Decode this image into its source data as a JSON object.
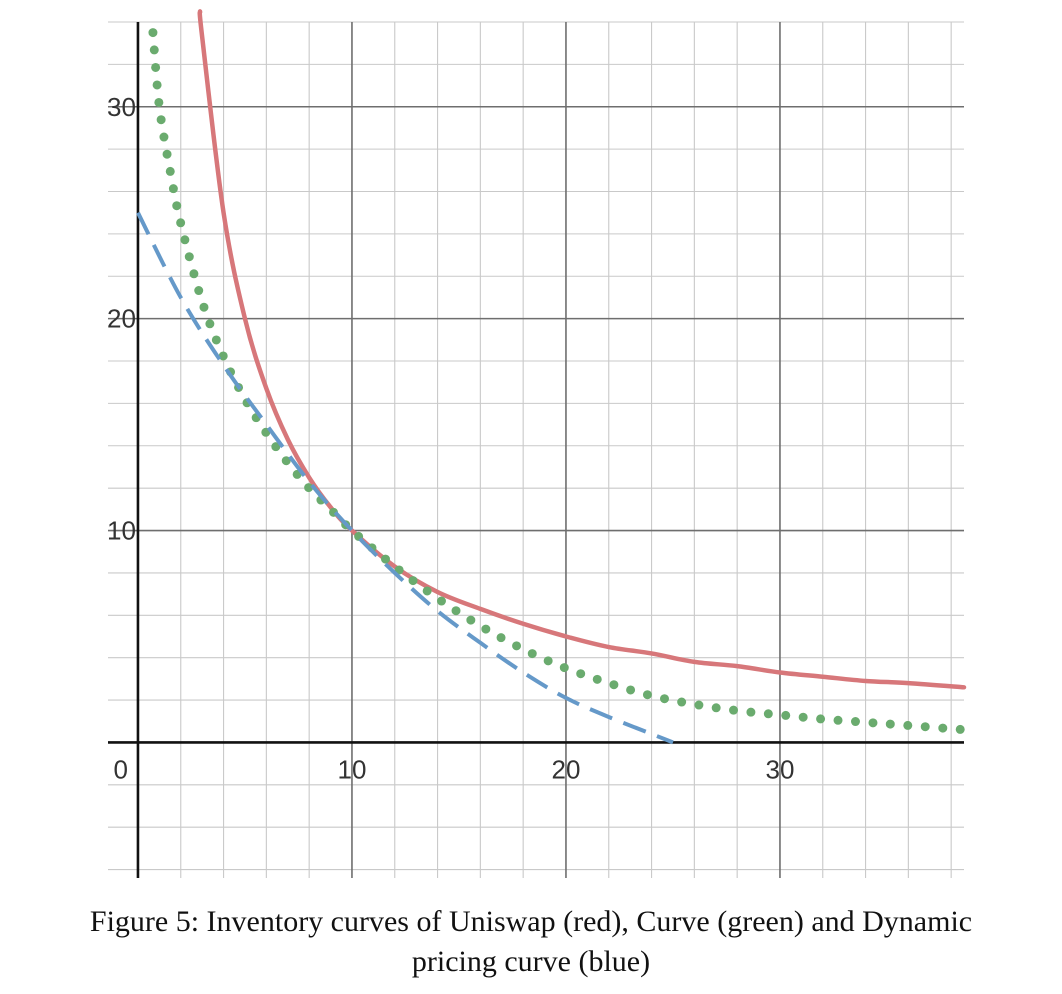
{
  "chart_data": {
    "type": "line",
    "title": "",
    "xlabel": "",
    "ylabel": "",
    "xlim": [
      -1.4,
      38.6
    ],
    "ylim": [
      -6.4,
      34
    ],
    "x_major_ticks": [
      0,
      10,
      20,
      30
    ],
    "y_major_ticks": [
      10,
      20,
      30
    ],
    "x_tick_labels": [
      "0",
      "10",
      "20",
      "30"
    ],
    "y_tick_labels": [
      "10",
      "20",
      "30"
    ],
    "minor_step": 2,
    "grid": true,
    "series": [
      {
        "color": "#d7777a",
        "style": "solid",
        "x": [
          2.9,
          3,
          4,
          5,
          6,
          7,
          8,
          9,
          10,
          12,
          14,
          16,
          18,
          20,
          22,
          24,
          26,
          28,
          30,
          32,
          34,
          36,
          38.6
        ],
        "values": [
          34.5,
          33.3,
          25,
          20,
          16.7,
          14.3,
          12.5,
          11.1,
          10,
          8.3,
          7.1,
          6.3,
          5.6,
          5,
          4.5,
          4.2,
          3.8,
          3.6,
          3.3,
          3.1,
          2.9,
          2.8,
          2.6
        ]
      },
      {
        "color": "#6aab6e",
        "style": "dotted",
        "x": [
          0.7,
          1,
          1.5,
          2,
          3,
          4,
          5,
          6,
          7,
          8,
          9,
          10,
          12,
          14,
          16,
          18,
          20,
          22,
          24,
          26,
          28,
          30,
          32,
          34,
          36,
          38.6
        ],
        "values": [
          33.5,
          30,
          27,
          24.5,
          20.8,
          18.2,
          16.2,
          14.6,
          13.2,
          12,
          11,
          10,
          8.3,
          6.8,
          5.5,
          4.4,
          3.5,
          2.8,
          2.2,
          1.8,
          1.5,
          1.3,
          1.1,
          0.95,
          0.8,
          0.6
        ]
      },
      {
        "color": "#6599c9",
        "style": "dashed",
        "x": [
          0,
          2,
          4,
          6,
          8,
          10,
          12,
          14,
          16,
          18,
          20,
          22,
          24,
          25
        ],
        "values": [
          25,
          21,
          17.8,
          15,
          12.3,
          10,
          8,
          6.2,
          4.7,
          3.3,
          2.1,
          1.2,
          0.4,
          0
        ]
      }
    ]
  },
  "caption": {
    "line1": "Figure 5: Inventory curves of Uniswap (red), Curve (green) and Dynamic",
    "line2": "pricing curve (blue)"
  }
}
